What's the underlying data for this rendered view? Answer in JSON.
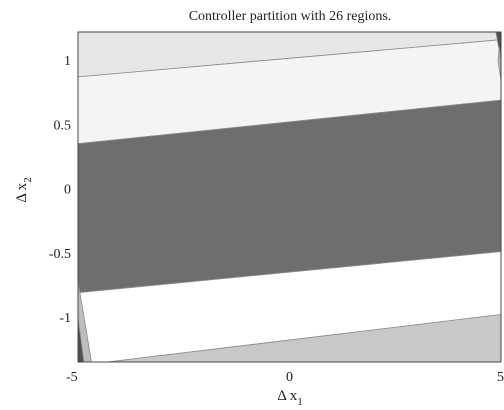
{
  "chart_data": {
    "type": "area",
    "title": "Controller partition with 26 regions.",
    "xlabel": "Δ x",
    "xlabel_sub": "1",
    "ylabel": "Δ x",
    "ylabel_sub": "2",
    "xlim": [
      -5,
      5
    ],
    "ylim": [
      -1.35,
      1.22
    ],
    "x_ticks": [
      -5,
      0,
      5
    ],
    "y_ticks": [
      -1,
      -0.5,
      0,
      0.5,
      1
    ],
    "grid": false,
    "legend": "none",
    "regions": [
      {
        "name": "top-band",
        "fill": "#e6e6e6",
        "points": [
          [
            -5,
            1.22
          ],
          [
            5,
            1.22
          ],
          [
            5,
            1.16
          ],
          [
            -5,
            0.87
          ]
        ]
      },
      {
        "name": "upper-light-band",
        "fill": "#f4f4f4",
        "points": [
          [
            -5,
            0.87
          ],
          [
            5,
            1.16
          ],
          [
            5,
            0.69
          ],
          [
            -5,
            0.35
          ]
        ]
      },
      {
        "name": "central-dark-band",
        "fill": "#6e6e6e",
        "points": [
          [
            -5,
            0.35
          ],
          [
            5,
            0.69
          ],
          [
            5,
            -0.49
          ],
          [
            -5,
            -0.81
          ]
        ]
      },
      {
        "name": "lower-white-band",
        "fill": "#ffffff",
        "points": [
          [
            -5,
            -0.81
          ],
          [
            5,
            -0.49
          ],
          [
            5,
            -0.98
          ],
          [
            -4.3,
            -1.35
          ],
          [
            -5,
            -1.35
          ]
        ]
      },
      {
        "name": "bottom-band",
        "fill": "#c8c8c8",
        "points": [
          [
            -4.3,
            -1.35
          ],
          [
            5,
            -0.98
          ],
          [
            5,
            -1.35
          ]
        ]
      },
      {
        "name": "left-edge-sliver-dark",
        "fill": "#505050",
        "points": [
          [
            -5,
            -1.05
          ],
          [
            -4.78,
            -1.35
          ],
          [
            -5,
            -1.35
          ]
        ]
      },
      {
        "name": "left-edge-sliver-light",
        "fill": "#bdbdbd",
        "points": [
          [
            -5,
            -0.72
          ],
          [
            -4.68,
            -1.35
          ],
          [
            -4.86,
            -1.35
          ],
          [
            -5,
            -1.0
          ]
        ]
      },
      {
        "name": "right-edge-sliver-dark",
        "fill": "#505050",
        "points": [
          [
            4.88,
            1.22
          ],
          [
            5,
            1.22
          ],
          [
            5,
            1.0
          ]
        ]
      },
      {
        "name": "right-edge-sliver-light",
        "fill": "#bdbdbd",
        "points": [
          [
            4.93,
            1.0
          ],
          [
            5,
            0.84
          ],
          [
            5,
            0.98
          ],
          [
            4.96,
            1.1
          ]
        ]
      }
    ]
  }
}
